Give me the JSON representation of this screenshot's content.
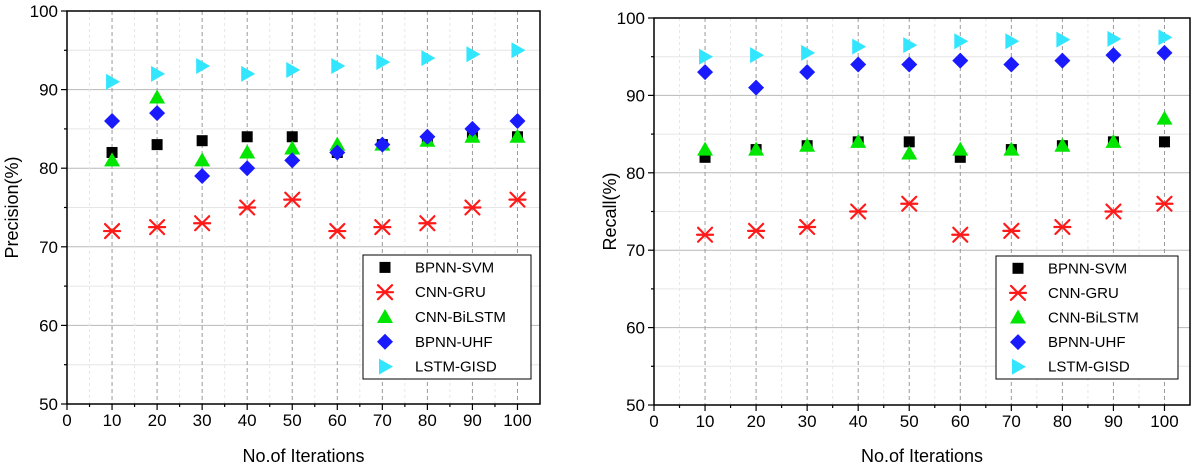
{
  "chart_data": [
    {
      "type": "scatter",
      "title": "",
      "xlabel": "No.of Iterations",
      "ylabel": "Precision(%)",
      "xlim": [
        0,
        105
      ],
      "ylim": [
        50,
        100
      ],
      "x": [
        10,
        20,
        30,
        40,
        50,
        60,
        70,
        80,
        90,
        100
      ],
      "xticks": [
        "0",
        "10",
        "20",
        "30",
        "40",
        "50",
        "60",
        "70",
        "80",
        "90",
        "100"
      ],
      "yticks": [
        "50",
        "60",
        "70",
        "80",
        "90",
        "100"
      ],
      "grid": true,
      "legend_position": "bottom-right",
      "series": [
        {
          "name": "BPNN-SVM",
          "marker": "square",
          "color": "#000000",
          "values": [
            82,
            83,
            83.5,
            84,
            84,
            82,
            83,
            83.5,
            84,
            84
          ]
        },
        {
          "name": "CNN-GRU",
          "marker": "asterisk",
          "color": "#ff1a1a",
          "values": [
            72,
            72.5,
            73,
            75,
            76,
            72,
            72.5,
            73,
            75,
            76
          ]
        },
        {
          "name": "CNN-BiLSTM",
          "marker": "triangle-up",
          "color": "#00e600",
          "values": [
            81,
            89,
            81,
            82,
            82.5,
            83,
            83,
            83.5,
            84,
            84
          ]
        },
        {
          "name": "BPNN-UHF",
          "marker": "diamond",
          "color": "#1a1aff",
          "values": [
            86,
            87,
            79,
            80,
            81,
            82,
            83,
            84,
            85,
            86
          ]
        },
        {
          "name": "LSTM-GISD",
          "marker": "triangle-right",
          "color": "#33e6ff",
          "values": [
            91,
            92,
            93,
            92,
            92.5,
            93,
            93.5,
            94,
            94.5,
            95
          ]
        }
      ]
    },
    {
      "type": "scatter",
      "title": "",
      "xlabel": "No.of Iterations",
      "ylabel": "Recall(%)",
      "xlim": [
        0,
        105
      ],
      "ylim": [
        50,
        100
      ],
      "x": [
        10,
        20,
        30,
        40,
        50,
        60,
        70,
        80,
        90,
        100
      ],
      "xticks": [
        "0",
        "10",
        "20",
        "30",
        "40",
        "50",
        "60",
        "70",
        "80",
        "90",
        "100"
      ],
      "yticks": [
        "50",
        "60",
        "70",
        "80",
        "90",
        "100"
      ],
      "grid": true,
      "legend_position": "bottom-right",
      "series": [
        {
          "name": "BPNN-SVM",
          "marker": "square",
          "color": "#000000",
          "values": [
            82,
            83,
            83.5,
            84,
            84,
            82,
            83,
            83.5,
            84,
            84
          ]
        },
        {
          "name": "CNN-GRU",
          "marker": "asterisk",
          "color": "#ff1a1a",
          "values": [
            72,
            72.5,
            73,
            75,
            76,
            72,
            72.5,
            73,
            75,
            76
          ]
        },
        {
          "name": "CNN-BiLSTM",
          "marker": "triangle-up",
          "color": "#00e600",
          "values": [
            83,
            83,
            83.5,
            84,
            82.5,
            83,
            83,
            83.5,
            84,
            87
          ]
        },
        {
          "name": "BPNN-UHF",
          "marker": "diamond",
          "color": "#1a1aff",
          "values": [
            93,
            91,
            93,
            94,
            94,
            94.5,
            94,
            94.5,
            95.2,
            95.5
          ]
        },
        {
          "name": "LSTM-GISD",
          "marker": "triangle-right",
          "color": "#33e6ff",
          "values": [
            95,
            95.2,
            95.5,
            96.3,
            96.5,
            97,
            97,
            97.2,
            97.3,
            97.5
          ]
        }
      ]
    }
  ]
}
